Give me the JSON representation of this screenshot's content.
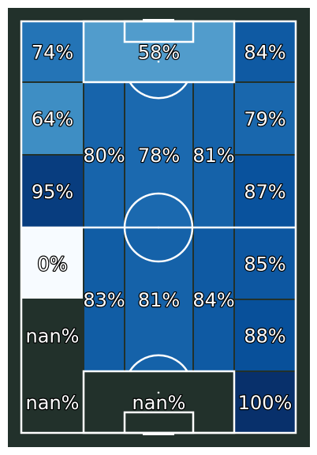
{
  "chart_data": {
    "type": "heatmap",
    "title": "",
    "colors": {
      "background": "#22312b",
      "line": "#ffffff",
      "empty_zone": "#22312b",
      "scale": [
        "#f7fbff",
        "#deebf7",
        "#c6dbef",
        "#9ecae1",
        "#6baed6",
        "#4292c6",
        "#2171b5",
        "#08519c",
        "#08306b"
      ]
    },
    "colormap": "Blues",
    "value_range": [
      0,
      100
    ],
    "zones": [
      {
        "row": 0,
        "col": 0,
        "value": 74,
        "label": "74%"
      },
      {
        "row": 0,
        "col": "1-3",
        "value": 58,
        "label": "58%"
      },
      {
        "row": 0,
        "col": 4,
        "value": 84,
        "label": "84%"
      },
      {
        "row": 1,
        "col": 0,
        "value": 64,
        "label": "64%"
      },
      {
        "row": 1,
        "col": 4,
        "value": 79,
        "label": "79%"
      },
      {
        "row": "1-2",
        "col": 1,
        "value": 80,
        "label": "80%"
      },
      {
        "row": "1-2",
        "col": 2,
        "value": 78,
        "label": "78%"
      },
      {
        "row": "1-2",
        "col": 3,
        "value": 81,
        "label": "81%"
      },
      {
        "row": 2,
        "col": 0,
        "value": 95,
        "label": "95%"
      },
      {
        "row": 2,
        "col": 4,
        "value": 87,
        "label": "87%"
      },
      {
        "row": 3,
        "col": 0,
        "value": 0,
        "label": "0%"
      },
      {
        "row": 3,
        "col": 4,
        "value": 85,
        "label": "85%"
      },
      {
        "row": "3-4",
        "col": 1,
        "value": 83,
        "label": "83%"
      },
      {
        "row": "3-4",
        "col": 2,
        "value": 81,
        "label": "81%"
      },
      {
        "row": "3-4",
        "col": 3,
        "value": 84,
        "label": "84%"
      },
      {
        "row": 4,
        "col": 0,
        "value": null,
        "label": "nan%"
      },
      {
        "row": 4,
        "col": 4,
        "value": 88,
        "label": "88%"
      },
      {
        "row": 5,
        "col": 0,
        "value": null,
        "label": "nan%"
      },
      {
        "row": 5,
        "col": "1-3",
        "value": null,
        "label": "nan%"
      },
      {
        "row": 5,
        "col": 4,
        "value": 100,
        "label": "100%"
      }
    ]
  }
}
